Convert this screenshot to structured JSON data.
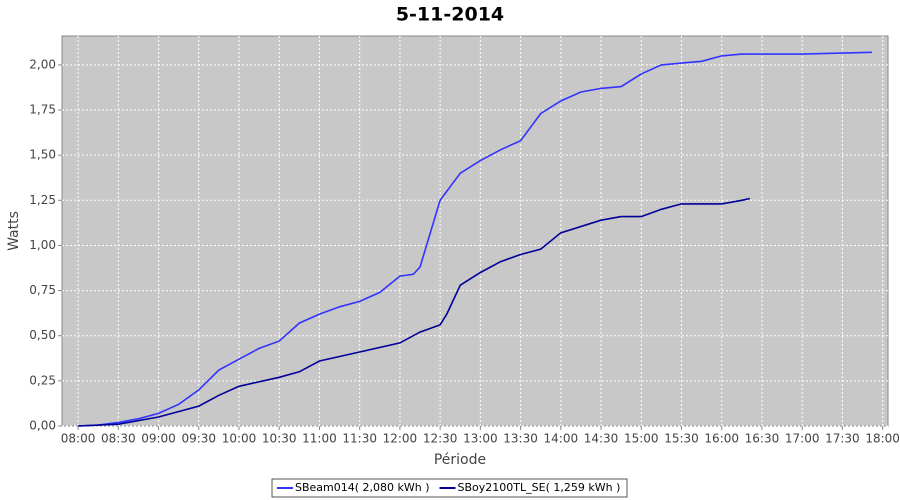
{
  "chart_data": {
    "type": "line",
    "title": "5-11-2014",
    "xlabel": "Période",
    "ylabel": "Watts",
    "xlim": [
      "07:48",
      "18:04"
    ],
    "xticks": [
      "08:00",
      "08:30",
      "09:00",
      "09:30",
      "10:00",
      "10:30",
      "11:00",
      "11:30",
      "12:00",
      "12:30",
      "13:00",
      "13:30",
      "14:00",
      "14:30",
      "15:00",
      "15:30",
      "16:00",
      "16:30",
      "17:00",
      "17:30",
      "18:00"
    ],
    "ylim": [
      0,
      2.16
    ],
    "yticks": [
      {
        "value": 0,
        "label": "0,00"
      },
      {
        "value": 0.25,
        "label": "0,25"
      },
      {
        "value": 0.5,
        "label": "0,50"
      },
      {
        "value": 0.75,
        "label": "0,75"
      },
      {
        "value": 1,
        "label": "1,00"
      },
      {
        "value": 1.25,
        "label": "1,25"
      },
      {
        "value": 1.5,
        "label": "1,50"
      },
      {
        "value": 1.75,
        "label": "1,75"
      },
      {
        "value": 2,
        "label": "2,00"
      }
    ],
    "grid": true,
    "series": [
      {
        "name": "SBeam014( 2,080 kWh )",
        "color": "#3333ff",
        "x": [
          "08:00",
          "08:15",
          "08:30",
          "08:45",
          "09:00",
          "09:15",
          "09:30",
          "09:45",
          "10:00",
          "10:15",
          "10:30",
          "10:45",
          "11:00",
          "11:15",
          "11:30",
          "11:45",
          "12:00",
          "12:10",
          "12:15",
          "12:30",
          "12:45",
          "13:00",
          "13:15",
          "13:30",
          "13:45",
          "14:00",
          "14:15",
          "14:30",
          "14:45",
          "15:00",
          "15:15",
          "15:30",
          "15:45",
          "16:00",
          "16:15",
          "17:00",
          "17:52"
        ],
        "values": [
          0,
          0.005,
          0.02,
          0.04,
          0.07,
          0.12,
          0.2,
          0.31,
          0.37,
          0.43,
          0.47,
          0.57,
          0.62,
          0.66,
          0.69,
          0.74,
          0.83,
          0.84,
          0.88,
          1.25,
          1.4,
          1.47,
          1.53,
          1.58,
          1.73,
          1.8,
          1.85,
          1.87,
          1.88,
          1.95,
          2.0,
          2.01,
          2.02,
          2.05,
          2.06,
          2.06,
          2.07
        ]
      },
      {
        "name": "SBoy2100TL_SE( 1,259 kWh )",
        "color": "#000099",
        "x": [
          "08:00",
          "08:30",
          "09:00",
          "09:30",
          "09:45",
          "10:00",
          "10:30",
          "10:45",
          "11:00",
          "11:30",
          "12:00",
          "12:15",
          "12:30",
          "12:35",
          "12:45",
          "13:00",
          "13:15",
          "13:30",
          "13:45",
          "14:00",
          "14:30",
          "14:45",
          "15:00",
          "15:15",
          "15:30",
          "16:00",
          "16:15",
          "16:21"
        ],
        "values": [
          0,
          0.01,
          0.05,
          0.11,
          0.17,
          0.22,
          0.27,
          0.3,
          0.36,
          0.41,
          0.46,
          0.52,
          0.56,
          0.62,
          0.78,
          0.85,
          0.91,
          0.95,
          0.98,
          1.07,
          1.14,
          1.16,
          1.16,
          1.2,
          1.23,
          1.23,
          1.25,
          1.26
        ]
      }
    ]
  }
}
